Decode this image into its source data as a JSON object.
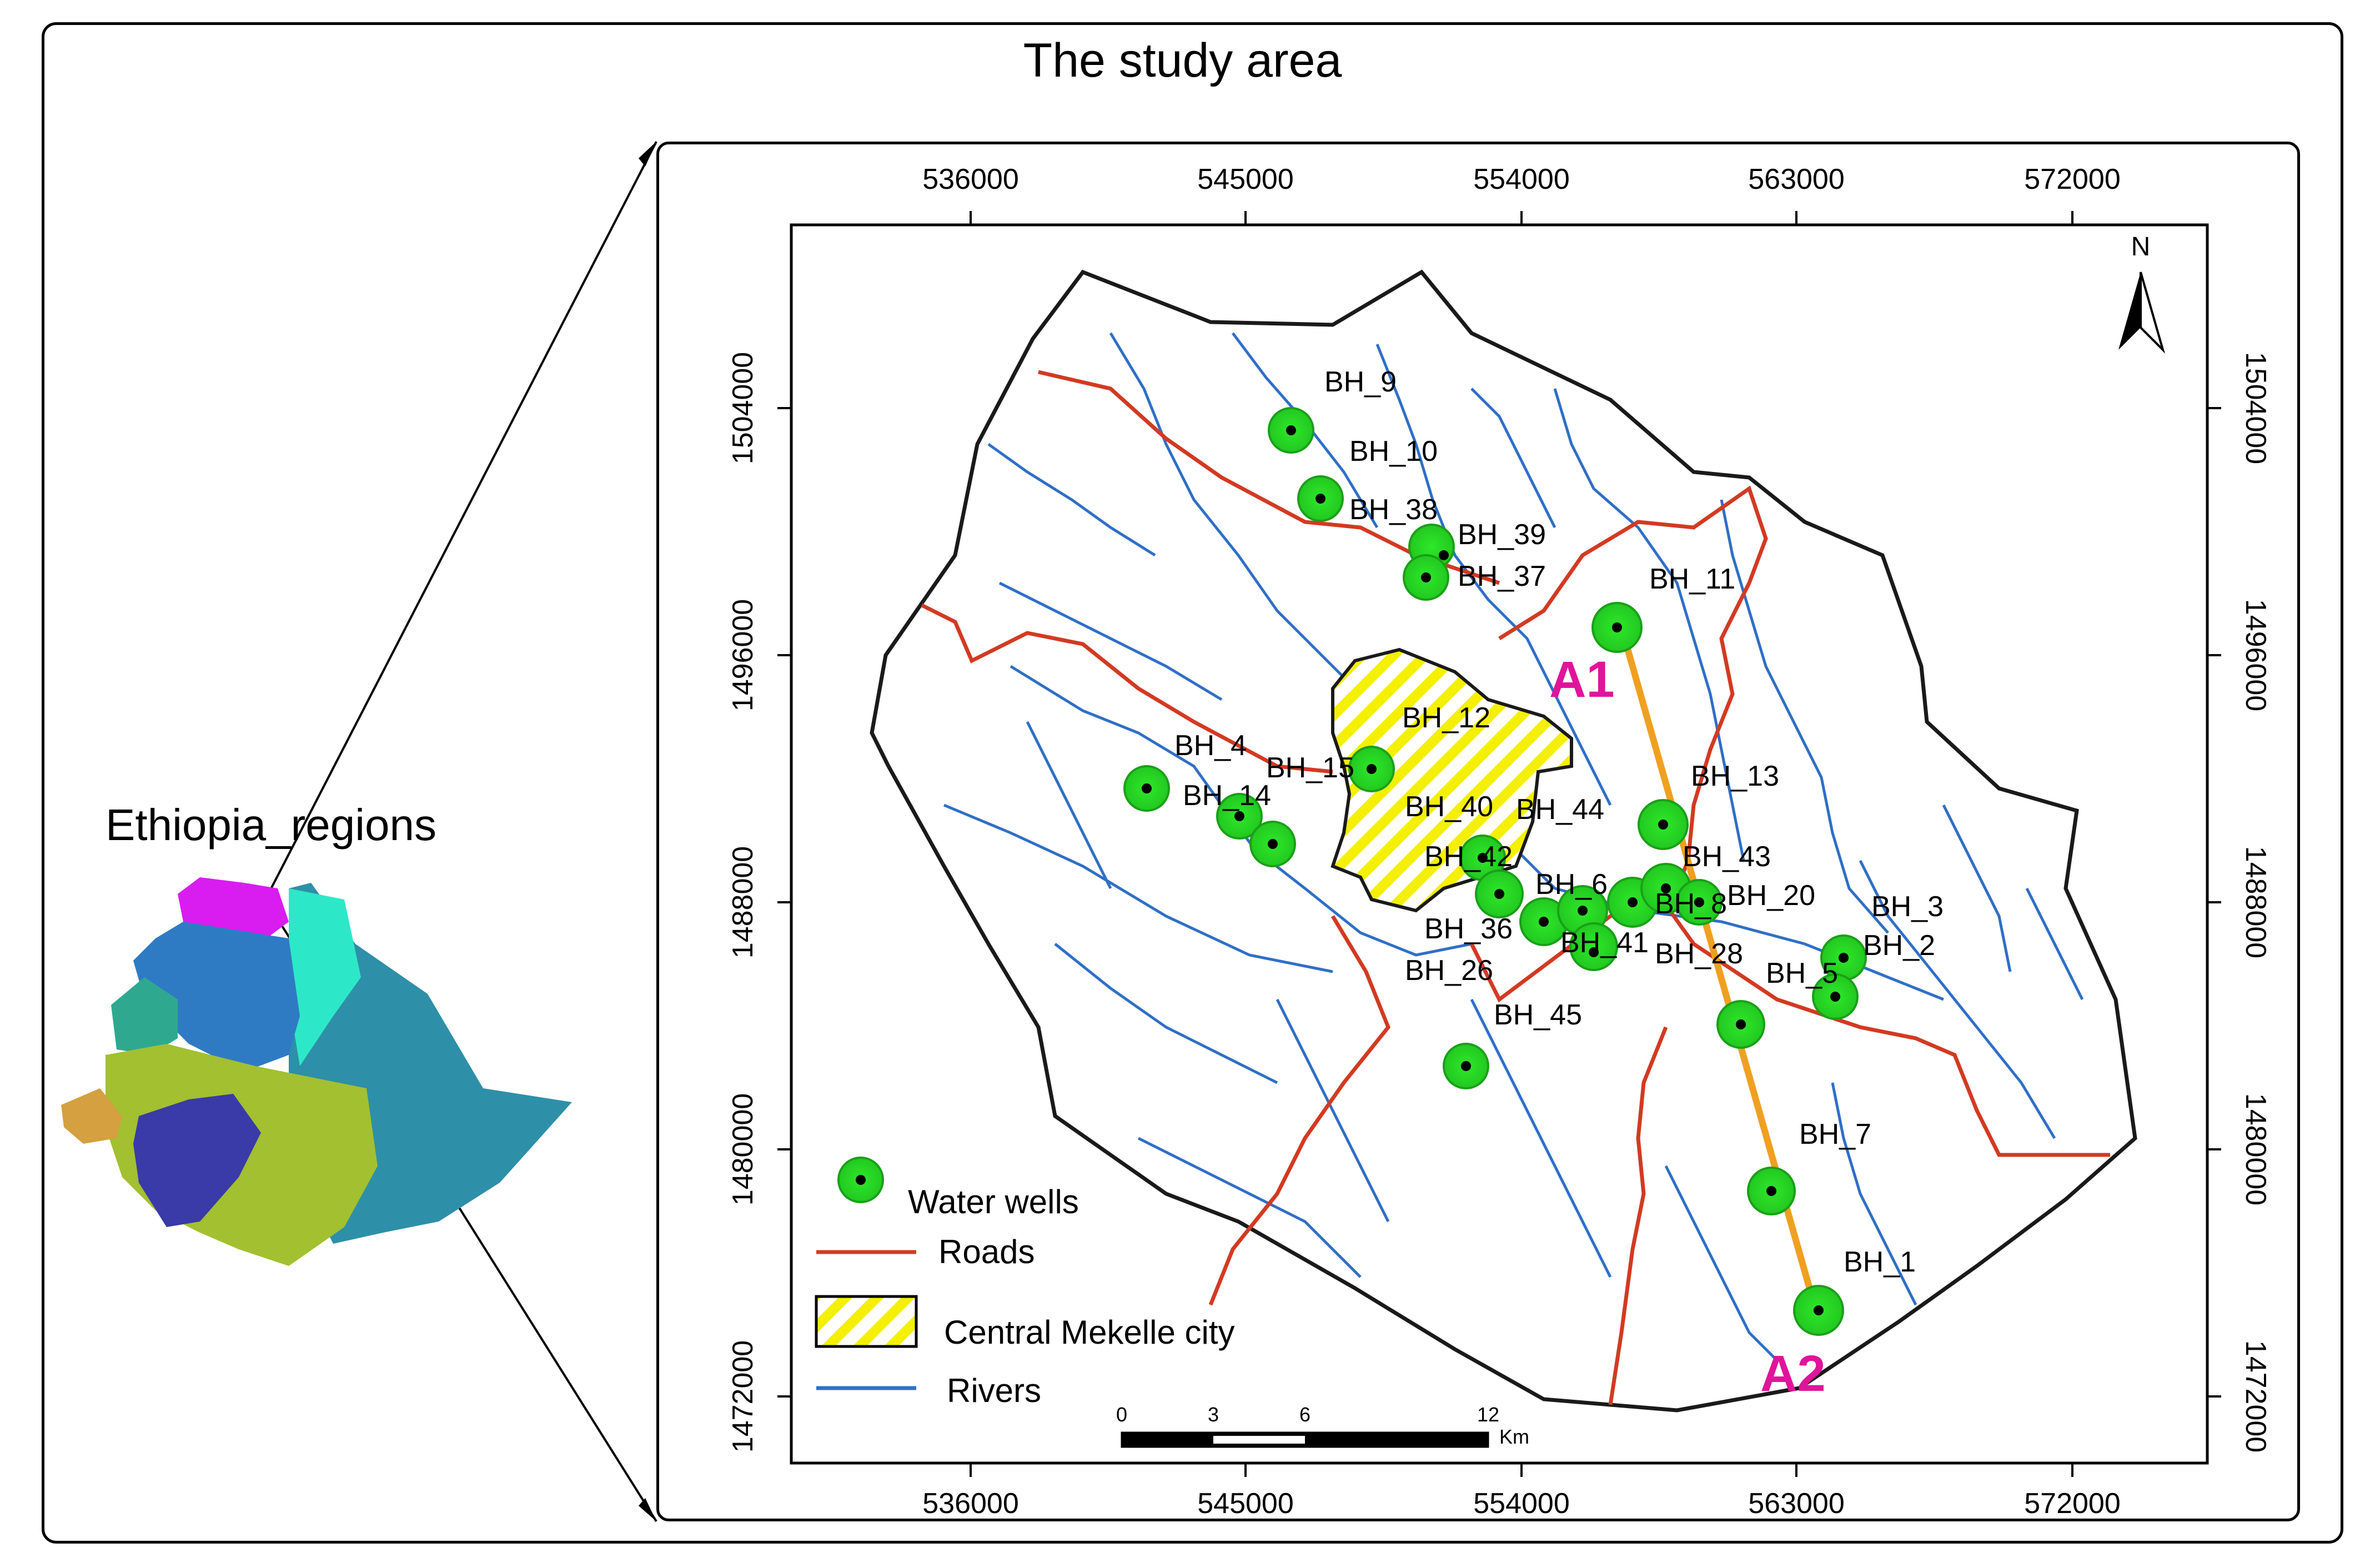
{
  "title": "The study area",
  "inset_title": "Ethiopia_regions",
  "axis": {
    "x_ticks": [
      "536000",
      "545000",
      "554000",
      "563000",
      "572000"
    ],
    "y_ticks": [
      "1504000",
      "1496000",
      "1488000",
      "1480000",
      "1472000"
    ]
  },
  "north_label": "N",
  "profile": {
    "start": "A1",
    "end": "A2"
  },
  "wells": [
    "BH_9",
    "BH_10",
    "BH_38",
    "BH_39",
    "BH_37",
    "BH_11",
    "BH_12",
    "BH_4",
    "BH_15",
    "BH_14",
    "BH_40",
    "BH_44",
    "BH_13",
    "BH_42",
    "BH_43",
    "BH_6",
    "BH_8",
    "BH_20",
    "BH_3",
    "BH_36",
    "BH_41",
    "BH_2",
    "BH_26",
    "BH_28",
    "BH_5",
    "BH_45",
    "BH_7",
    "BH_1"
  ],
  "legend": {
    "wells": "Water wells",
    "roads": "Roads",
    "city": "Central Mekelle city",
    "rivers": "Rivers"
  },
  "scale": {
    "ticks": [
      "0",
      "3",
      "6",
      "12"
    ],
    "unit": "Km"
  },
  "colors": {
    "roads": "#d23a22",
    "rivers": "#2f6fc6",
    "wells": "#2ee82a",
    "profile": "#f0a020",
    "city_hatch": "#f4f000",
    "profile_labels": "#e0149a"
  }
}
